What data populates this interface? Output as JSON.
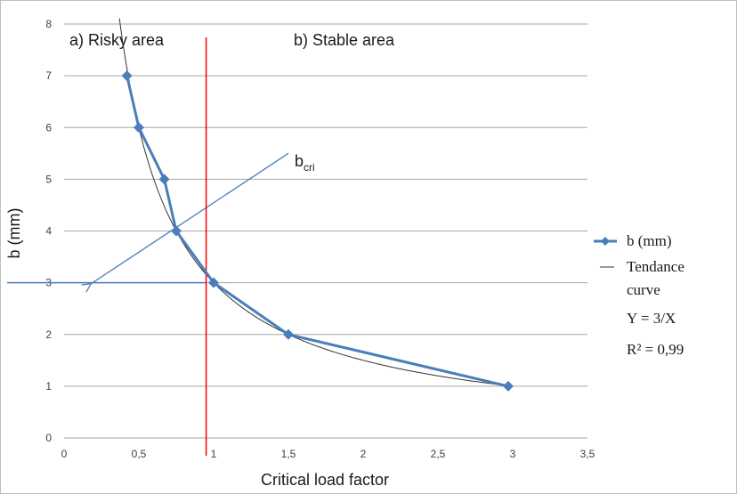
{
  "chart_data": {
    "type": "line",
    "title": "",
    "xlabel": "Critical load factor",
    "ylabel": "b (mm)",
    "xlim": [
      0,
      3.5
    ],
    "ylim": [
      0,
      8
    ],
    "x_ticks": [
      "0",
      "0,5",
      "1",
      "1,5",
      "2",
      "2,5",
      "3",
      "3,5"
    ],
    "y_ticks": [
      "0",
      "1",
      "2",
      "3",
      "4",
      "5",
      "6",
      "7",
      "8"
    ],
    "grid": "horizontal",
    "series": [
      {
        "name": "b (mm)",
        "color": "#4a7ebb",
        "marker": "diamond",
        "x": [
          0.42,
          0.5,
          0.67,
          0.75,
          1.0,
          1.5,
          2.97
        ],
        "y": [
          7,
          6,
          5,
          4,
          3,
          2,
          1
        ]
      }
    ],
    "trendline": {
      "equation": "Y = 3/X",
      "r_squared": "R² = 0,99",
      "color": "#333333"
    },
    "legend": {
      "placement": "right",
      "series_label": "b (mm)",
      "trend_label_line1": "Tendance",
      "trend_label_line2": "curve",
      "equation": "Y = 3/X",
      "r_squared": "R² = 0,99"
    },
    "annotations": {
      "risky_area": "a) Risky area",
      "stable_area": "b) Stable area",
      "bcri_main": "b",
      "bcri_sub": "cri",
      "critical_x": 0.95,
      "critical_line_color": "#ff0000",
      "bcri_line_color": "#4a7ebb",
      "bcri_level": 3,
      "bcri_arrow_from": [
        1.5,
        5.5
      ],
      "bcri_arrow_to": [
        0.18,
        2.98
      ]
    }
  }
}
